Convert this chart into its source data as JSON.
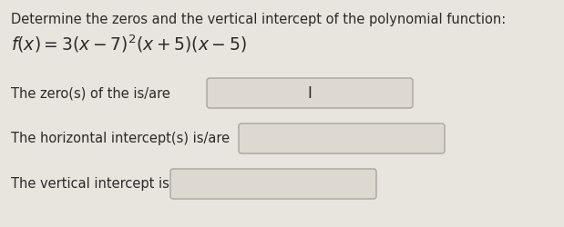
{
  "title_line1": "Determine the zeros and the vertical intercept of the polynomial function:",
  "label1": "The zero(s) of the is/are",
  "label2": "The horizontal intercept(s) is/are",
  "label3": "The vertical intercept is",
  "bg_color": "#e8e4de",
  "box_face_color": "#ddd8d0",
  "box_edge_color": "#aaa49e",
  "text_color": "#2a2a2a",
  "title_fontsize": 10.5,
  "formula_fontsize": 13.5,
  "label_fontsize": 10.5,
  "cursor_fontsize": 12
}
